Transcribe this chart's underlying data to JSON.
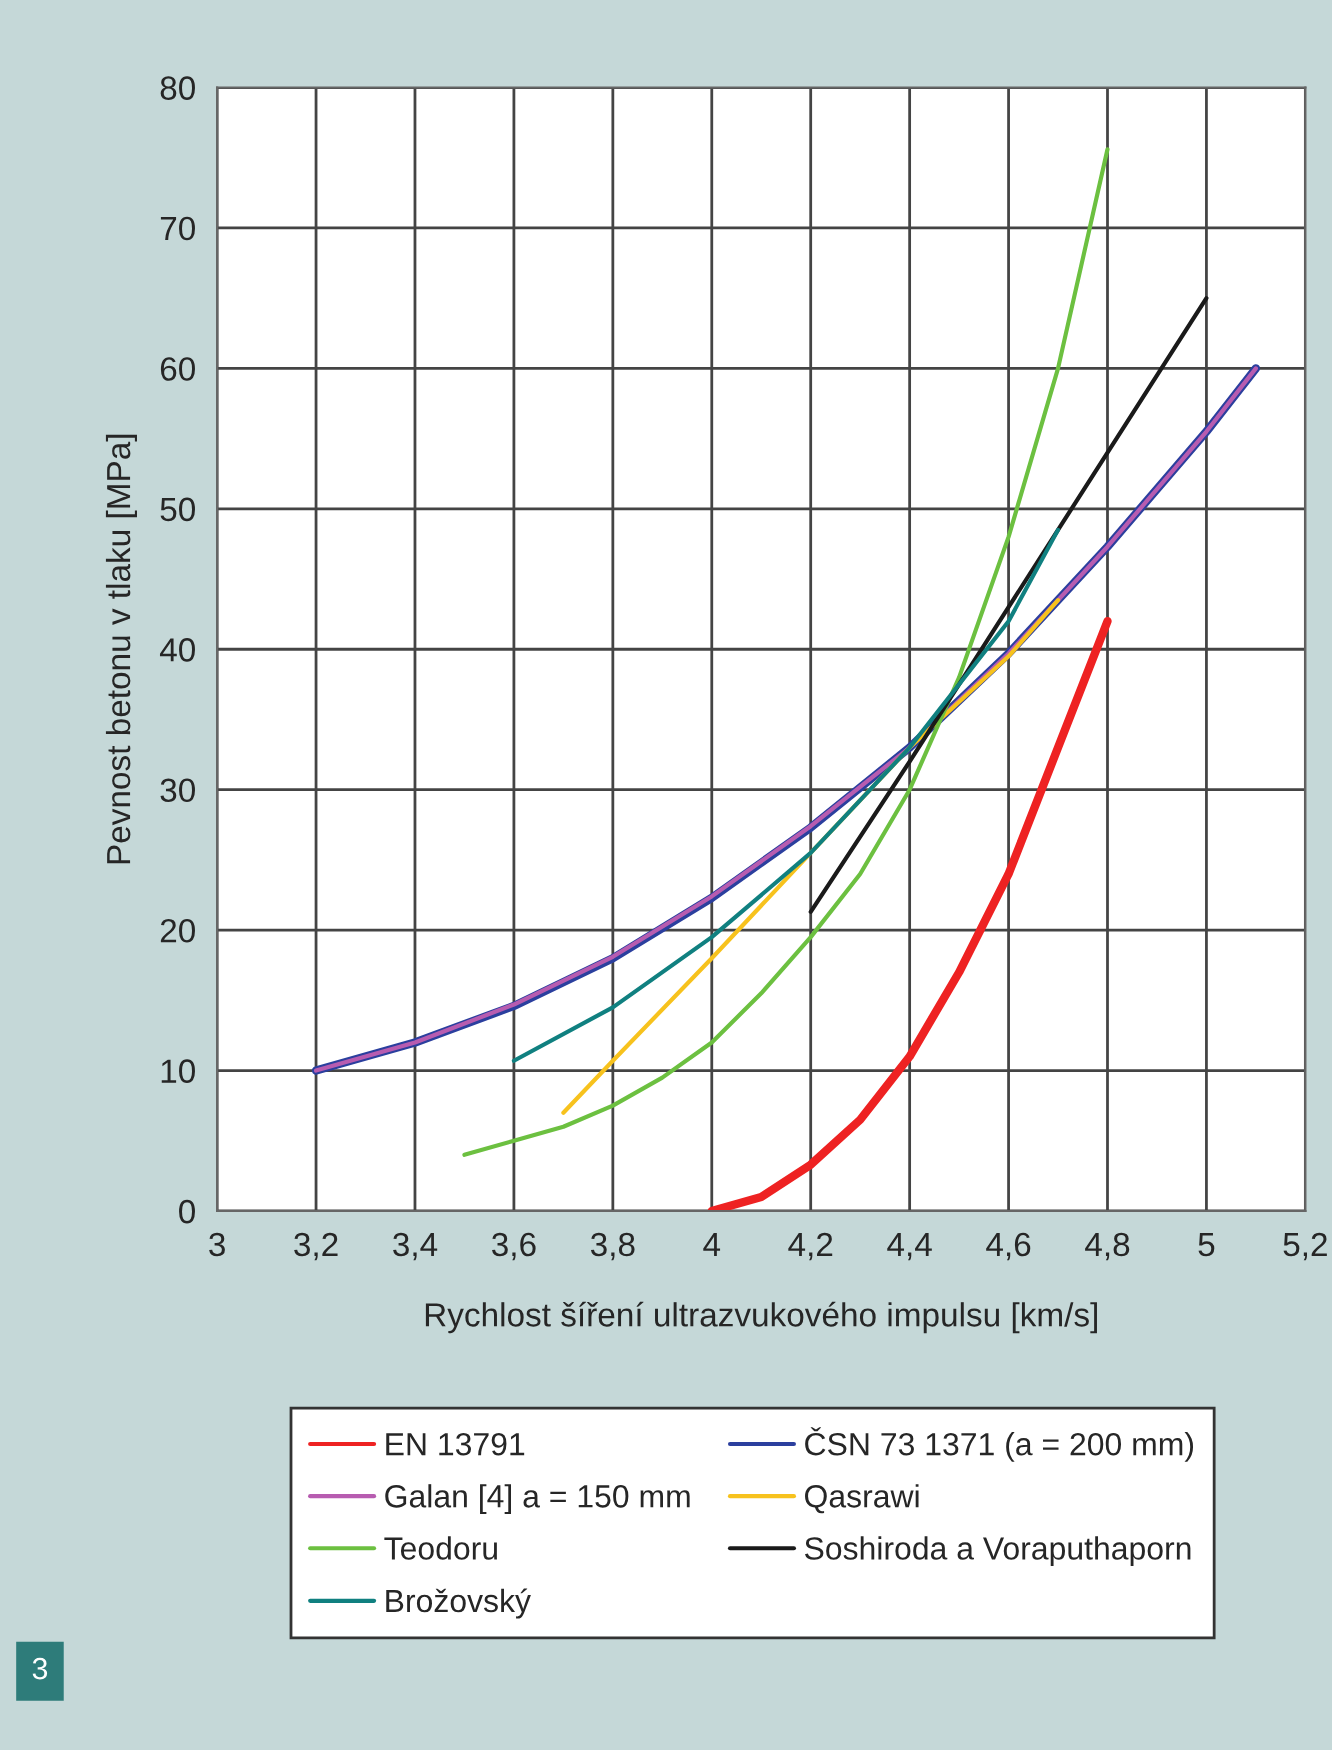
{
  "chart_data": {
    "type": "line",
    "xlabel": "Rychlost šíření ultrazvukového impulsu [km/s]",
    "ylabel": "Pevnost betonu v tlaku [MPa]",
    "xlim": [
      3,
      5.2
    ],
    "ylim": [
      0,
      80
    ],
    "xticks": [
      3,
      {
        "value": 3.2,
        "label": "3,2"
      },
      {
        "value": 3.4,
        "label": "3,4"
      },
      {
        "value": 3.6,
        "label": "3,6"
      },
      {
        "value": 3.8,
        "label": "3,8"
      },
      4,
      {
        "value": 4.2,
        "label": "4,2"
      },
      {
        "value": 4.4,
        "label": "4,4"
      },
      {
        "value": 4.6,
        "label": "4,6"
      },
      {
        "value": 4.8,
        "label": "4,8"
      },
      5,
      {
        "value": 5.2,
        "label": "5,2"
      }
    ],
    "yticks": [
      0,
      10,
      20,
      30,
      40,
      50,
      60,
      70,
      80
    ],
    "grid": true,
    "legend": "bottom",
    "marker": "none",
    "line_style": "solid",
    "annotations": [
      "3"
    ],
    "series": [
      {
        "name": "EN 13791",
        "color": "#ee2222",
        "x": [
          4.0,
          4.1,
          4.2,
          4.3,
          4.4,
          4.5,
          4.6,
          4.7,
          4.8
        ],
        "values": [
          0,
          1,
          3.3,
          6.5,
          11,
          17,
          24,
          33,
          42
        ]
      },
      {
        "name": "ČSN 73 1371 (a = 200 mm)",
        "color": "#2b3f9e",
        "x": [
          3.2,
          3.4,
          3.6,
          3.8,
          4.0,
          4.2,
          4.4,
          4.6,
          4.8,
          5.0,
          5.1
        ],
        "values": [
          10,
          12,
          14.6,
          18,
          22.3,
          27.3,
          33,
          39.7,
          47.3,
          55.5,
          60
        ]
      },
      {
        "name": "Galan [4] a = 150 mm",
        "color": "#b75cb0",
        "x": [
          3.2,
          3.4,
          3.6,
          3.8,
          4.0,
          4.2,
          4.4,
          4.6,
          4.8,
          5.0,
          5.1
        ],
        "values": [
          10,
          12,
          14.7,
          18.1,
          22.4,
          27.4,
          33,
          39.7,
          47.3,
          55.5,
          60
        ]
      },
      {
        "name": "Qasrawi",
        "color": "#f7c21d",
        "x": [
          3.7,
          3.8,
          4.0,
          4.2,
          4.4,
          4.6,
          4.7
        ],
        "values": [
          7,
          10.7,
          18,
          25.5,
          33,
          39.5,
          43.5
        ]
      },
      {
        "name": "Teodoru",
        "color": "#6cc040",
        "x": [
          3.5,
          3.6,
          3.7,
          3.8,
          3.9,
          4.0,
          4.1,
          4.2,
          4.3,
          4.4,
          4.5,
          4.6,
          4.7,
          4.8
        ],
        "values": [
          4,
          5,
          6,
          7.5,
          9.5,
          12,
          15.5,
          19.5,
          24,
          30,
          38,
          48,
          60,
          75.6
        ]
      },
      {
        "name": "Soshiroda a Voraputhaporn",
        "color": "#1a1a1a",
        "x": [
          4.2,
          4.4,
          4.7,
          5.0
        ],
        "values": [
          21.3,
          32,
          48.5,
          65
        ]
      },
      {
        "name": "Brožovský",
        "color": "#108080",
        "x": [
          3.6,
          3.8,
          4.0,
          4.2,
          4.4,
          4.6,
          4.7
        ],
        "values": [
          10.7,
          14.5,
          19.5,
          25.5,
          33,
          42,
          48.5
        ]
      }
    ]
  }
}
